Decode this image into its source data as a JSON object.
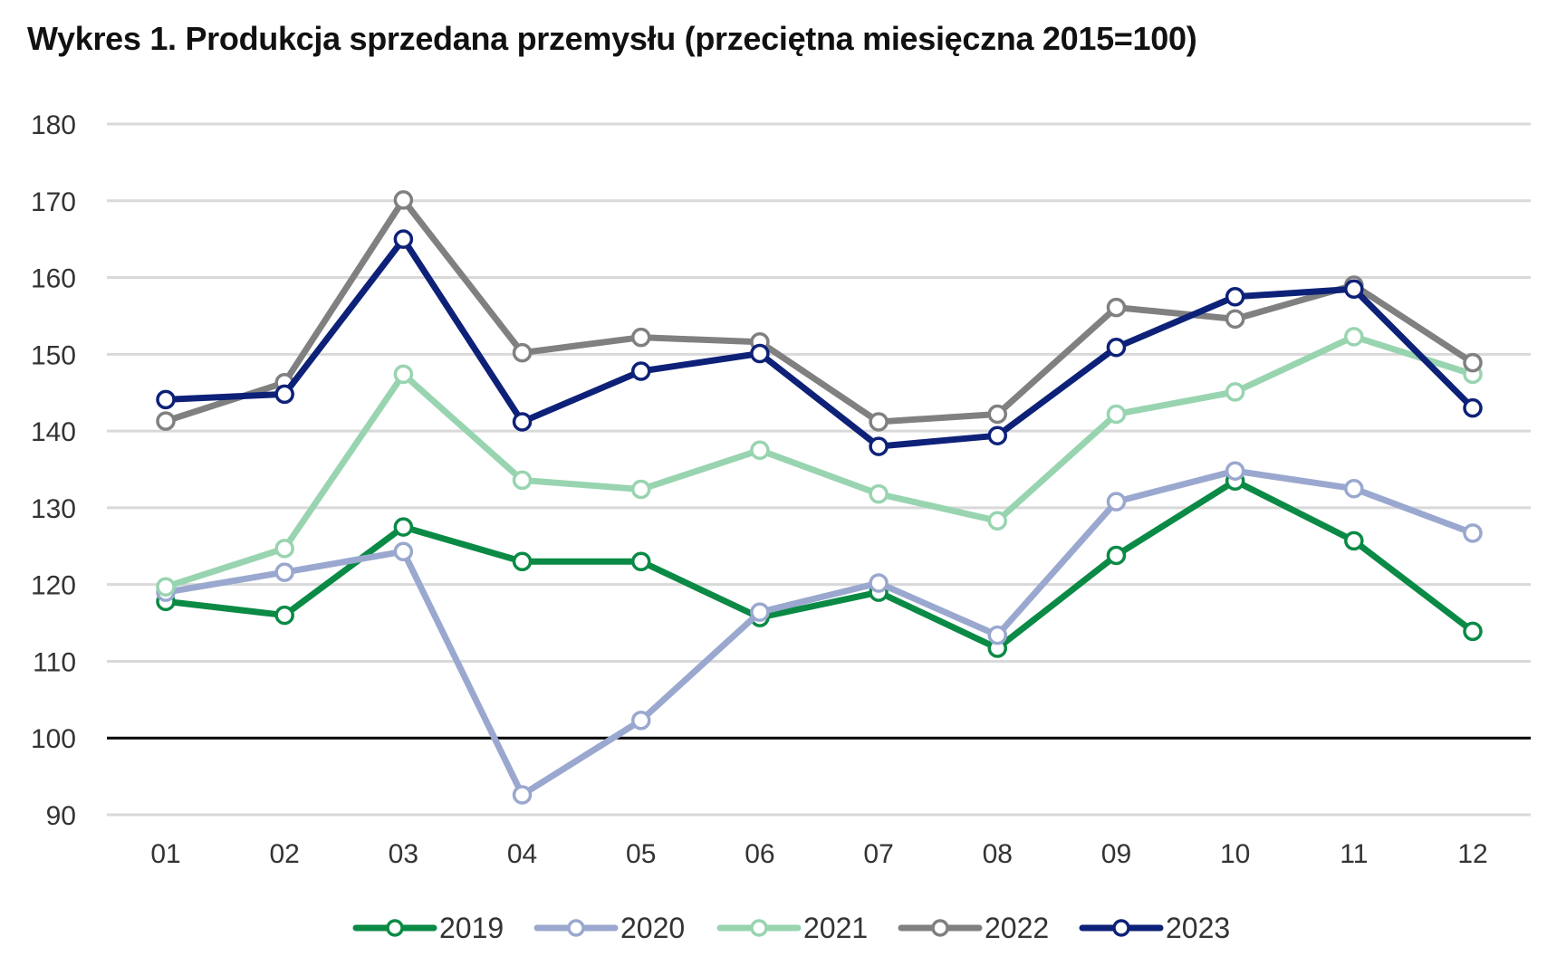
{
  "title": "Wykres 1. Produkcja sprzedana przemysłu (przeciętna miesięczna 2015=100)",
  "chart_data": {
    "type": "line",
    "title": "Wykres 1. Produkcja sprzedana przemysłu (przeciętna miesięczna 2015=100)",
    "xlabel": "",
    "ylabel": "",
    "categories": [
      "01",
      "02",
      "03",
      "04",
      "05",
      "06",
      "07",
      "08",
      "09",
      "10",
      "11",
      "12"
    ],
    "ylim": [
      90,
      180
    ],
    "yticks": [
      90,
      100,
      110,
      120,
      130,
      140,
      150,
      160,
      170,
      180
    ],
    "reference_line": 100,
    "grid": true,
    "legend_position": "bottom",
    "series": [
      {
        "name": "2019",
        "color": "#0a8a45",
        "values": [
          117.8,
          116.0,
          127.5,
          123.0,
          123.0,
          115.7,
          119.0,
          111.7,
          123.8,
          133.5,
          125.7,
          113.9
        ]
      },
      {
        "name": "2020",
        "color": "#9aa8cf",
        "values": [
          119.0,
          121.6,
          124.3,
          92.6,
          102.3,
          116.4,
          120.2,
          113.4,
          130.8,
          134.8,
          132.5,
          126.7
        ]
      },
      {
        "name": "2021",
        "color": "#98d4b0",
        "values": [
          119.7,
          124.7,
          147.4,
          133.6,
          132.4,
          137.5,
          131.8,
          128.3,
          142.2,
          145.1,
          152.3,
          147.4
        ]
      },
      {
        "name": "2022",
        "color": "#808080",
        "values": [
          141.3,
          146.3,
          170.1,
          150.2,
          152.2,
          151.6,
          141.2,
          142.2,
          156.1,
          154.6,
          159.0,
          148.9
        ]
      },
      {
        "name": "2023",
        "color": "#0e2178",
        "values": [
          144.1,
          144.8,
          165.0,
          141.2,
          147.8,
          150.1,
          138.0,
          139.4,
          150.9,
          157.5,
          158.5,
          143.0
        ]
      }
    ]
  }
}
